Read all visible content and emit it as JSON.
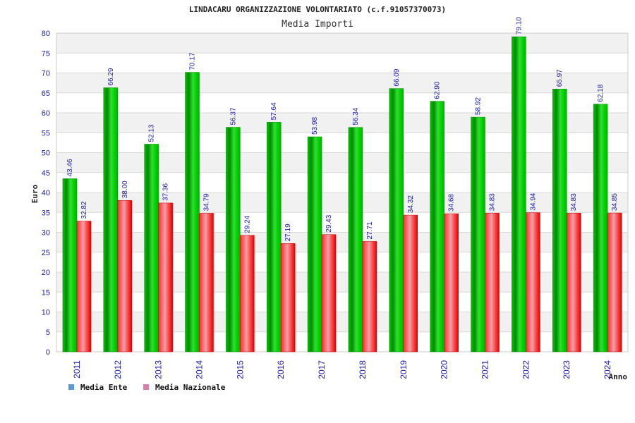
{
  "chart_data": {
    "type": "bar",
    "title": "LINDACARU ORGANIZZAZIONE VOLONTARIATO (c.f.91057370073)",
    "subtitle": "Media Importi",
    "ylabel": "Euro",
    "xlabel": "Anno",
    "ylim": [
      0,
      80
    ],
    "yticks": [
      0,
      5,
      10,
      15,
      20,
      25,
      30,
      35,
      40,
      45,
      50,
      55,
      60,
      65,
      70,
      75,
      80
    ],
    "grid": true,
    "legend_position": "bottom-left",
    "categories": [
      "2011",
      "2012",
      "2013",
      "2014",
      "2015",
      "2016",
      "2017",
      "2018",
      "2019",
      "2020",
      "2021",
      "2022",
      "2023",
      "2024"
    ],
    "series": [
      {
        "name": "Media Ente",
        "color": "#00b400",
        "legend_color": "#5b9bd5",
        "values": [
          43.46,
          66.29,
          52.13,
          70.17,
          56.37,
          57.64,
          53.98,
          56.34,
          66.09,
          62.9,
          58.92,
          79.1,
          65.97,
          62.18
        ],
        "labels": [
          "43.46",
          "66.29",
          "52.13",
          "70.17",
          "56.37",
          "57.64",
          "53.98",
          "56.34",
          "66.09",
          "62.90",
          "58.92",
          "79.10",
          "65.97",
          "62.18"
        ]
      },
      {
        "name": "Media Nazionale",
        "color": "#e00000",
        "legend_color": "#d97fa8",
        "values": [
          32.82,
          38.0,
          37.36,
          34.79,
          29.24,
          27.19,
          29.43,
          27.71,
          34.32,
          34.68,
          34.83,
          34.94,
          34.83,
          34.85
        ],
        "labels": [
          "32.82",
          "38.00",
          "37.36",
          "34.79",
          "29.24",
          "27.19",
          "29.43",
          "27.71",
          "34.32",
          "34.68",
          "34.83",
          "34.94",
          "34.83",
          "34.85"
        ]
      }
    ]
  }
}
